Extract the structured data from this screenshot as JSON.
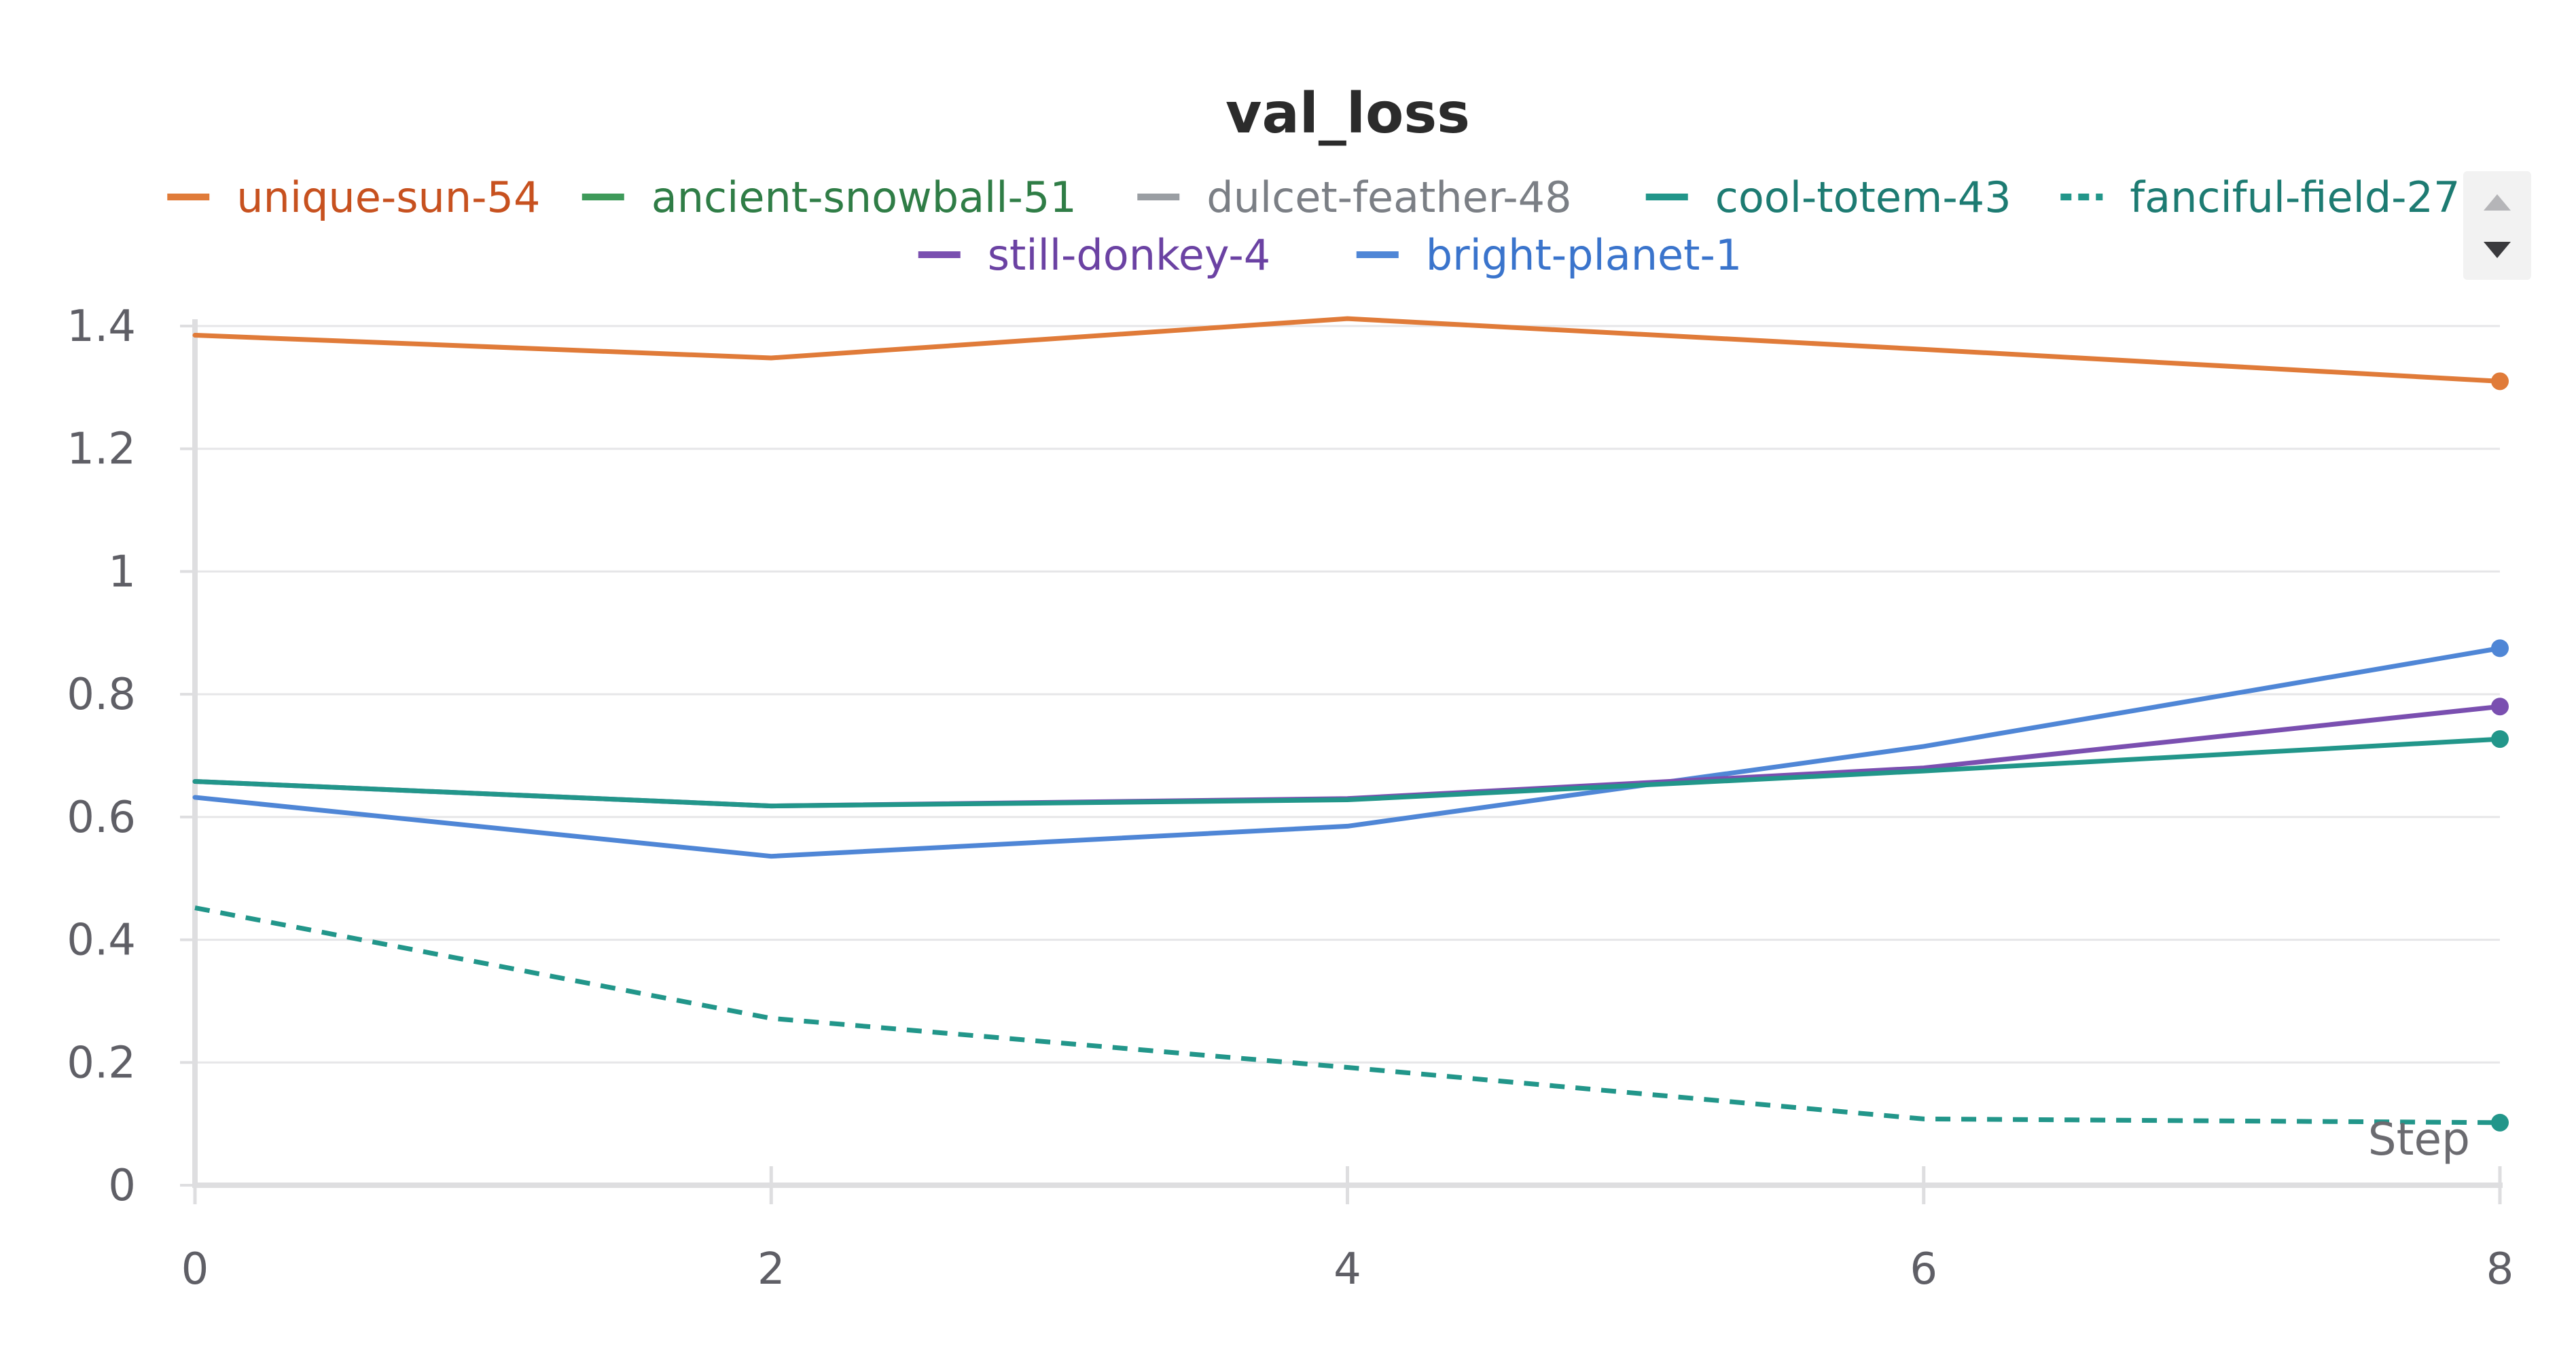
{
  "chart_data": {
    "type": "line",
    "title": "val_loss",
    "xlabel": "Step",
    "ylabel": "",
    "xlim": [
      0,
      8
    ],
    "ylim": [
      0,
      1.4
    ],
    "xticks": [
      "0",
      "2",
      "4",
      "6",
      "8"
    ],
    "yticks": [
      "0",
      "0.2",
      "0.4",
      "0.6",
      "0.8",
      "1",
      "1.2",
      "1.4"
    ],
    "grid": true,
    "legend_position": "top",
    "series": [
      {
        "name": "unique-sun-54",
        "color": "#e07b39",
        "legend_text_color": "#c7511f",
        "dashed": false,
        "x": [
          0,
          2,
          4,
          6,
          8
        ],
        "values": [
          1.385,
          1.348,
          1.412,
          1.362,
          1.31
        ]
      },
      {
        "name": "ancient-snowball-51",
        "color": "#3e9a5a",
        "legend_text_color": "#2f7d46",
        "dashed": false,
        "x": [],
        "values": []
      },
      {
        "name": "dulcet-feather-48",
        "color": "#9a9ea3",
        "legend_text_color": "#7b7f85",
        "dashed": false,
        "x": [],
        "values": []
      },
      {
        "name": "cool-totem-43",
        "color": "#22968a",
        "legend_text_color": "#1d7b72",
        "dashed": false,
        "x": [
          0,
          2,
          4,
          6,
          8
        ],
        "values": [
          0.658,
          0.618,
          0.628,
          0.675,
          0.727
        ]
      },
      {
        "name": "fanciful-field-27",
        "color": "#22968a",
        "legend_text_color": "#1d7b72",
        "dashed": true,
        "x": [
          0,
          2,
          4,
          6,
          8
        ],
        "values": [
          0.452,
          0.272,
          0.192,
          0.108,
          0.102
        ]
      },
      {
        "name": "still-donkey-4",
        "color": "#7a4fb0",
        "legend_text_color": "#6b42a3",
        "dashed": false,
        "x": [
          0,
          2,
          4,
          6,
          8
        ],
        "values": [
          0.658,
          0.618,
          0.63,
          0.68,
          0.78
        ]
      },
      {
        "name": "bright-planet-1",
        "color": "#4f86d6",
        "legend_text_color": "#3a74cc",
        "dashed": false,
        "x": [
          0,
          2,
          4,
          6,
          8
        ],
        "values": [
          0.632,
          0.536,
          0.585,
          0.715,
          0.875
        ]
      }
    ]
  }
}
